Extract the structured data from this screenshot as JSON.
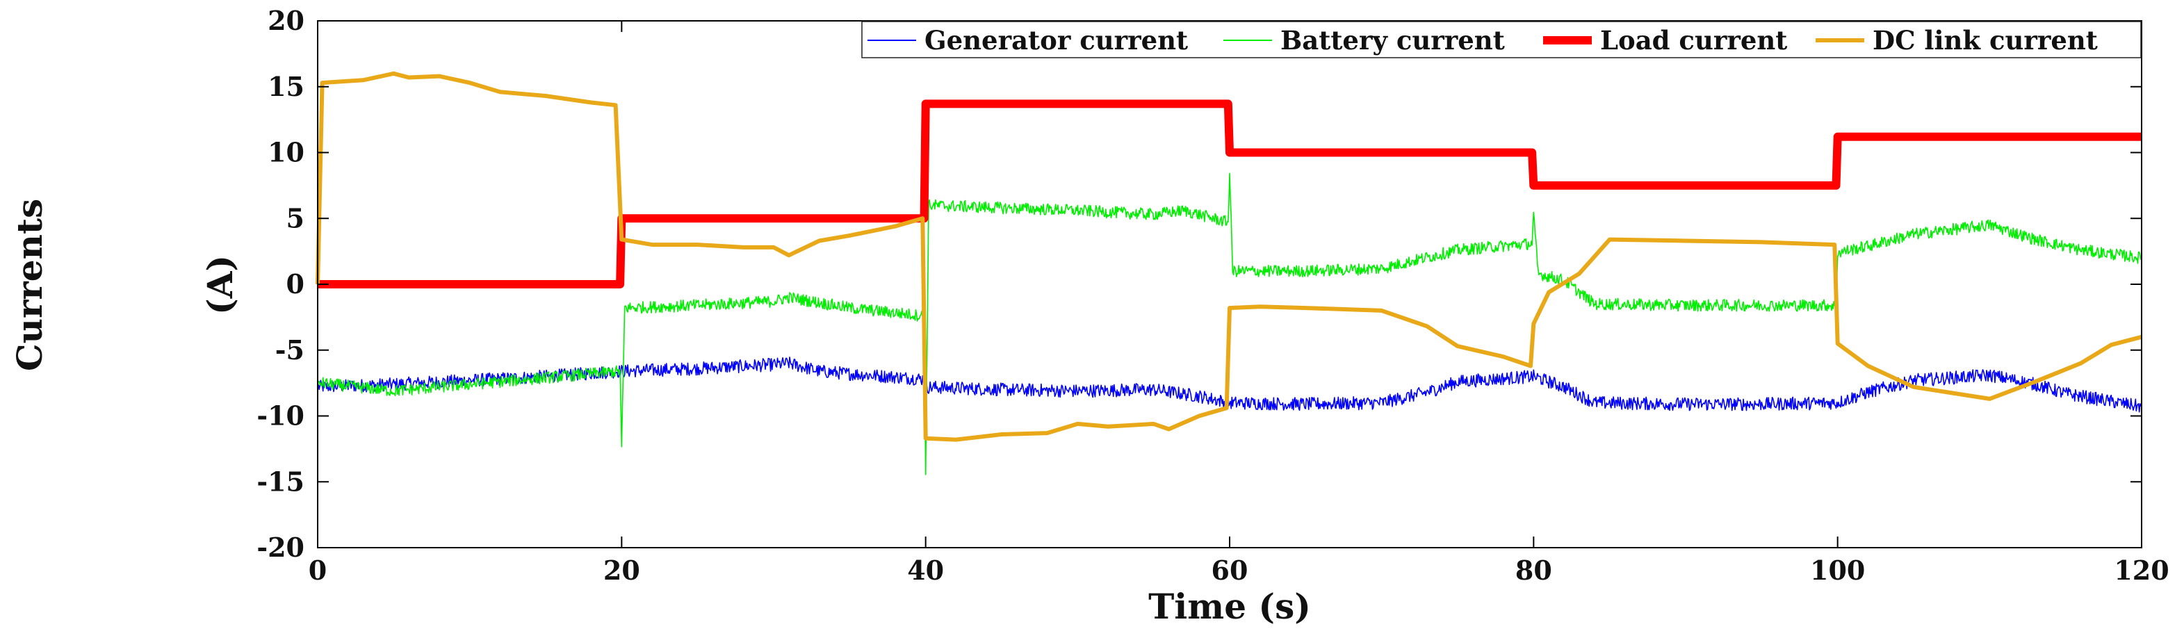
{
  "chart_data": {
    "type": "line",
    "side_label": "Currents",
    "ylabel": "(A)",
    "xlabel": "Time (s)",
    "xlim": [
      0,
      120
    ],
    "ylim": [
      -20,
      20
    ],
    "xticks": [
      0,
      20,
      40,
      60,
      80,
      100,
      120
    ],
    "yticks": [
      20,
      15,
      10,
      5,
      0,
      -5,
      -10,
      -15,
      -20
    ],
    "grid": false,
    "legend_position": "top-right",
    "series": [
      {
        "name": "Generator current",
        "color": "#0000ff",
        "noise": 0.5,
        "points": [
          [
            0,
            -7.8
          ],
          [
            5,
            -7.6
          ],
          [
            10,
            -7.3
          ],
          [
            15,
            -7.0
          ],
          [
            19.9,
            -6.6
          ],
          [
            20,
            -6.6
          ],
          [
            25,
            -6.4
          ],
          [
            30,
            -6.1
          ],
          [
            31,
            -6.0
          ],
          [
            33,
            -6.6
          ],
          [
            35,
            -6.8
          ],
          [
            39.9,
            -7.2
          ],
          [
            40,
            -7.8
          ],
          [
            45,
            -8.0
          ],
          [
            50,
            -8.1
          ],
          [
            55,
            -8.0
          ],
          [
            58,
            -8.5
          ],
          [
            60,
            -9.0
          ],
          [
            65,
            -9.1
          ],
          [
            70,
            -9.0
          ],
          [
            73,
            -8.2
          ],
          [
            75,
            -7.4
          ],
          [
            80,
            -7.0
          ],
          [
            82,
            -7.8
          ],
          [
            84,
            -9.0
          ],
          [
            90,
            -9.1
          ],
          [
            95,
            -9.1
          ],
          [
            100,
            -9.0
          ],
          [
            102,
            -8.2
          ],
          [
            105,
            -7.3
          ],
          [
            110,
            -6.9
          ],
          [
            113,
            -7.6
          ],
          [
            115,
            -8.3
          ],
          [
            118,
            -8.9
          ],
          [
            120,
            -9.3
          ]
        ]
      },
      {
        "name": "Battery current",
        "color": "#00ee00",
        "noise": 0.45,
        "points": [
          [
            0,
            -7.8
          ],
          [
            0.2,
            -7.5
          ],
          [
            5,
            -8.1
          ],
          [
            10,
            -7.6
          ],
          [
            15,
            -7.1
          ],
          [
            19.9,
            -6.6
          ],
          [
            20,
            -12.5
          ],
          [
            20.2,
            -1.8
          ],
          [
            25,
            -1.6
          ],
          [
            30,
            -1.3
          ],
          [
            31,
            -1.0
          ],
          [
            35,
            -1.8
          ],
          [
            39.9,
            -2.4
          ],
          [
            40,
            -14.3
          ],
          [
            40.2,
            6.0
          ],
          [
            45,
            5.8
          ],
          [
            50,
            5.6
          ],
          [
            55,
            5.3
          ],
          [
            57,
            5.6
          ],
          [
            59.9,
            4.7
          ],
          [
            60,
            8.4
          ],
          [
            60.2,
            1.0
          ],
          [
            65,
            1.0
          ],
          [
            70,
            1.2
          ],
          [
            75,
            2.6
          ],
          [
            79.9,
            3.1
          ],
          [
            80,
            5.2
          ],
          [
            80.3,
            0.8
          ],
          [
            82,
            0.3
          ],
          [
            84,
            -1.5
          ],
          [
            90,
            -1.6
          ],
          [
            95,
            -1.6
          ],
          [
            99.9,
            -1.6
          ],
          [
            100,
            2.4
          ],
          [
            102,
            2.9
          ],
          [
            105,
            3.8
          ],
          [
            110,
            4.5
          ],
          [
            113,
            3.4
          ],
          [
            116,
            2.6
          ],
          [
            120,
            2.0
          ]
        ]
      },
      {
        "name": "Load current",
        "color": "#ff0000",
        "noise": 0,
        "points": [
          [
            0,
            0
          ],
          [
            19.9,
            0
          ],
          [
            20,
            5
          ],
          [
            39.9,
            5
          ],
          [
            40,
            13.7
          ],
          [
            59.9,
            13.7
          ],
          [
            60,
            10
          ],
          [
            79.9,
            10
          ],
          [
            80,
            7.5
          ],
          [
            99.9,
            7.5
          ],
          [
            100,
            11.2
          ],
          [
            120,
            11.2
          ]
        ]
      },
      {
        "name": "DC link current",
        "color": "#e8a818",
        "noise": 0,
        "points": [
          [
            0,
            0
          ],
          [
            0.3,
            15.3
          ],
          [
            3,
            15.5
          ],
          [
            5,
            16.0
          ],
          [
            6,
            15.7
          ],
          [
            8,
            15.8
          ],
          [
            10,
            15.3
          ],
          [
            12,
            14.6
          ],
          [
            15,
            14.3
          ],
          [
            18,
            13.8
          ],
          [
            19.6,
            13.6
          ],
          [
            20,
            3.4
          ],
          [
            22,
            3.0
          ],
          [
            25,
            3.0
          ],
          [
            28,
            2.8
          ],
          [
            30,
            2.8
          ],
          [
            31,
            2.2
          ],
          [
            33,
            3.3
          ],
          [
            35,
            3.7
          ],
          [
            38,
            4.4
          ],
          [
            39.8,
            5.0
          ],
          [
            40,
            -11.7
          ],
          [
            42,
            -11.8
          ],
          [
            45,
            -11.4
          ],
          [
            48,
            -11.3
          ],
          [
            50,
            -10.6
          ],
          [
            52,
            -10.8
          ],
          [
            55,
            -10.6
          ],
          [
            56,
            -11.0
          ],
          [
            58,
            -10.0
          ],
          [
            59.8,
            -9.4
          ],
          [
            60,
            -1.8
          ],
          [
            62,
            -1.7
          ],
          [
            65,
            -1.8
          ],
          [
            70,
            -2.0
          ],
          [
            73,
            -3.2
          ],
          [
            75,
            -4.7
          ],
          [
            78,
            -5.5
          ],
          [
            79.8,
            -6.2
          ],
          [
            80,
            -3.0
          ],
          [
            81,
            -0.6
          ],
          [
            83,
            0.8
          ],
          [
            85,
            3.4
          ],
          [
            90,
            3.3
          ],
          [
            95,
            3.2
          ],
          [
            99.8,
            3.0
          ],
          [
            100,
            -4.5
          ],
          [
            102,
            -6.2
          ],
          [
            105,
            -7.8
          ],
          [
            110,
            -8.7
          ],
          [
            113,
            -7.4
          ],
          [
            116,
            -6.0
          ],
          [
            118,
            -4.6
          ],
          [
            120,
            -4.0
          ]
        ]
      }
    ]
  }
}
